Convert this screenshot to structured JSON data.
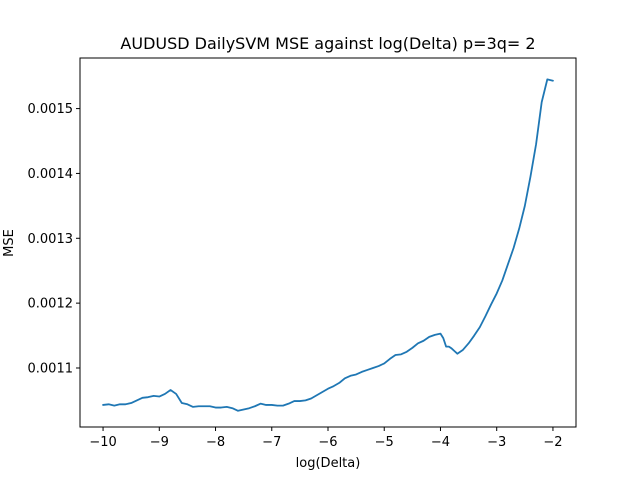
{
  "chart_data": {
    "type": "line",
    "title": "AUDUSD DailySVM MSE against log(Delta) p=3q= 2",
    "xlabel": "log(Delta)",
    "ylabel": "MSE",
    "xlim": [
      -10.41,
      -1.59
    ],
    "ylim": [
      0.001009,
      0.001578
    ],
    "xticks": [
      -10,
      -9,
      -8,
      -7,
      -6,
      -5,
      -4,
      -3,
      -2
    ],
    "xtick_labels": [
      "−10",
      "−9",
      "−8",
      "−7",
      "−6",
      "−5",
      "−4",
      "−3",
      "−2"
    ],
    "yticks": [
      0.0011,
      0.0012,
      0.0013,
      0.0014,
      0.0015
    ],
    "ytick_labels": [
      "0.0011",
      "0.0012",
      "0.0013",
      "0.0014",
      "0.0015"
    ],
    "grid": false,
    "line_color": "#1f77b4",
    "series": [
      {
        "x": [
          -10.0,
          -9.9,
          -9.8,
          -9.7,
          -9.6,
          -9.5,
          -9.4,
          -9.3,
          -9.2,
          -9.1,
          -9.0,
          -8.9,
          -8.8,
          -8.7,
          -8.6,
          -8.5,
          -8.4,
          -8.3,
          -8.2,
          -8.1,
          -8.0,
          -7.9,
          -7.8,
          -7.7,
          -7.6,
          -7.5,
          -7.4,
          -7.3,
          -7.2,
          -7.1,
          -7.0,
          -6.9,
          -6.8,
          -6.7,
          -6.6,
          -6.5,
          -6.4,
          -6.3,
          -6.2,
          -6.1,
          -6.0,
          -5.9,
          -5.8,
          -5.7,
          -5.6,
          -5.5,
          -5.4,
          -5.3,
          -5.2,
          -5.1,
          -5.0,
          -4.9,
          -4.8,
          -4.7,
          -4.6,
          -4.5,
          -4.4,
          -4.3,
          -4.2,
          -4.1,
          -4.0,
          -3.95,
          -3.9,
          -3.85,
          -3.8,
          -3.75,
          -3.7,
          -3.6,
          -3.5,
          -3.4,
          -3.3,
          -3.2,
          -3.1,
          -3.0,
          -2.9,
          -2.8,
          -2.7,
          -2.6,
          -2.5,
          -2.4,
          -2.3,
          -2.2,
          -2.1,
          -2.0
        ],
        "values": [
          0.001043,
          0.001044,
          0.001042,
          0.001044,
          0.001044,
          0.001046,
          0.00105,
          0.001054,
          0.001055,
          0.001057,
          0.001056,
          0.00106,
          0.001066,
          0.00106,
          0.001046,
          0.001044,
          0.00104,
          0.001041,
          0.001041,
          0.001041,
          0.001039,
          0.001039,
          0.00104,
          0.001038,
          0.001034,
          0.001036,
          0.001038,
          0.001041,
          0.001045,
          0.001043,
          0.001043,
          0.001042,
          0.001042,
          0.001045,
          0.001049,
          0.001049,
          0.00105,
          0.001053,
          0.001058,
          0.001063,
          0.001068,
          0.001072,
          0.001077,
          0.001084,
          0.001088,
          0.00109,
          0.001094,
          0.001097,
          0.0011,
          0.001103,
          0.001107,
          0.001114,
          0.00112,
          0.001121,
          0.001125,
          0.001131,
          0.001138,
          0.001142,
          0.001148,
          0.001151,
          0.001153,
          0.001146,
          0.001133,
          0.001133,
          0.00113,
          0.001126,
          0.001122,
          0.001128,
          0.001138,
          0.00115,
          0.001163,
          0.00118,
          0.001198,
          0.001215,
          0.001235,
          0.00126,
          0.001285,
          0.001315,
          0.00135,
          0.001395,
          0.001445,
          0.00151,
          0.001545,
          0.001543
        ]
      }
    ]
  }
}
